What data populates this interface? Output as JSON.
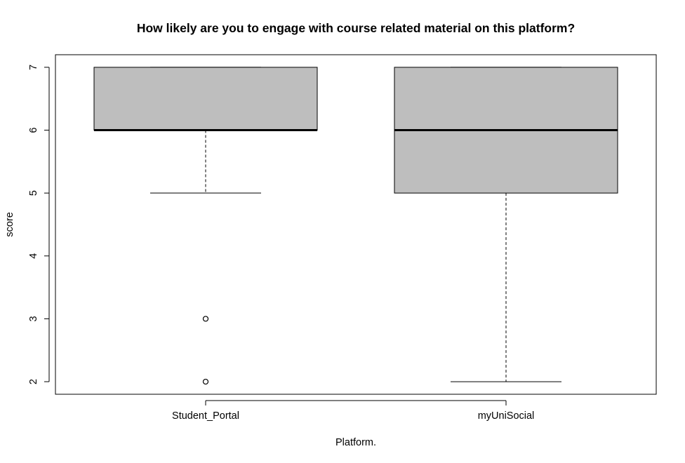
{
  "chart_data": {
    "type": "boxplot",
    "title": "How likely are you to engage with course related material on this platform?",
    "xlabel": "Platform.",
    "ylabel": "score",
    "ylim": [
      1.8,
      7.2
    ],
    "yticks": [
      2,
      3,
      4,
      5,
      6,
      7
    ],
    "box_fill": "#bebebe",
    "grid": false,
    "categories": [
      "Student_Portal",
      "myUniSocial"
    ],
    "boxes": [
      {
        "category": "Student_Portal",
        "whisker_low": 5,
        "q1": 6,
        "median": 6,
        "q3": 7,
        "whisker_high": 7,
        "outliers": [
          3,
          2
        ]
      },
      {
        "category": "myUniSocial",
        "whisker_low": 2,
        "q1": 5,
        "median": 6,
        "q3": 7,
        "whisker_high": 7,
        "outliers": []
      }
    ]
  }
}
